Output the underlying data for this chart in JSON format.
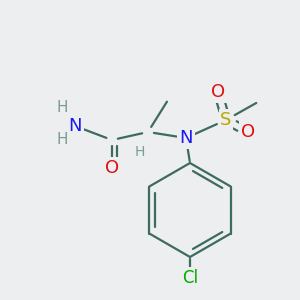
{
  "background_color": "#eceef0",
  "bond_color": "#3d6b5e",
  "bond_width": 1.6,
  "figsize": [
    3.0,
    3.0
  ],
  "dpi": 100,
  "colors": {
    "H": "#7a9e96",
    "N": "#1a1aee",
    "O": "#e01010",
    "S": "#b8a800",
    "Cl": "#00aa00",
    "bond": "#3d6b5e"
  }
}
